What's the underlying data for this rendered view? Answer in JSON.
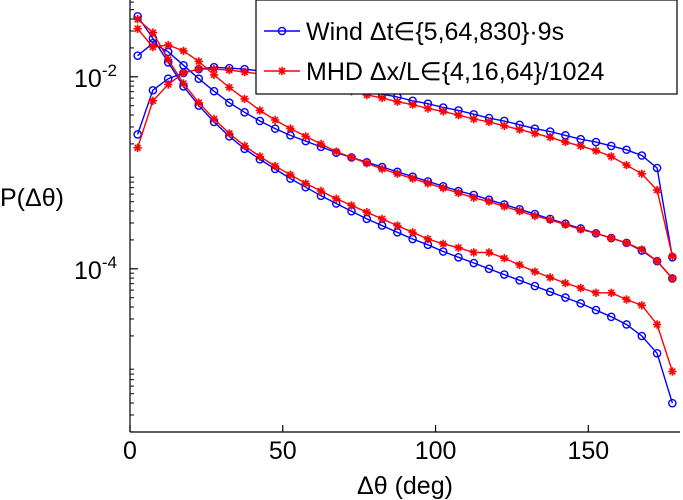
{
  "chart_data": {
    "type": "line",
    "title": "",
    "xlabel": "Δθ (deg)",
    "ylabel": "P(Δθ)",
    "xlim": [
      0,
      180
    ],
    "ylim_log10": [
      -5.7,
      -1.2
    ],
    "yscale": "log",
    "x_ticks": [
      0,
      50,
      100,
      150
    ],
    "x_tick_labels": [
      "0",
      "50",
      "100",
      "150"
    ],
    "y_ticks": [
      -2,
      -4
    ],
    "y_tick_labels": [
      {
        "base": "10",
        "exp": "-2"
      },
      {
        "base": "10",
        "exp": "-4"
      }
    ],
    "legend_position": "top-right",
    "legend": [
      {
        "label": "Wind Δt∈{5,64,830}·9s",
        "color": "#0000ff",
        "marker": "circle"
      },
      {
        "label": "MHD Δx/L∈{4,16,64}/1024",
        "color": "#ff0000",
        "marker": "star"
      }
    ],
    "series": [
      {
        "name": "Wind Δt=5·9s",
        "color": "#0000ff",
        "marker": "circle",
        "x": [
          2.5,
          7.5,
          12.5,
          17.5,
          22.5,
          27.5,
          32.5,
          37.5,
          42.5,
          47.5,
          52.5,
          57.5,
          62.5,
          67.5,
          72.5,
          77.5,
          82.5,
          87.5,
          92.5,
          97.5,
          102.5,
          107.5,
          112.5,
          117.5,
          122.5,
          127.5,
          132.5,
          137.5,
          142.5,
          147.5,
          152.5,
          157.5,
          162.5,
          167.5,
          172.5,
          177.5
        ],
        "log10y": [
          -1.37,
          -1.6,
          -1.85,
          -2.1,
          -2.3,
          -2.47,
          -2.62,
          -2.75,
          -2.86,
          -2.96,
          -3.06,
          -3.15,
          -3.24,
          -3.32,
          -3.4,
          -3.48,
          -3.55,
          -3.62,
          -3.69,
          -3.75,
          -3.82,
          -3.88,
          -3.94,
          -4.0,
          -4.06,
          -4.12,
          -4.18,
          -4.24,
          -4.3,
          -4.36,
          -4.43,
          -4.5,
          -4.58,
          -4.7,
          -4.88,
          -5.4
        ]
      },
      {
        "name": "Wind Δt=64·9s",
        "color": "#0000ff",
        "marker": "circle",
        "x": [
          2.5,
          7.5,
          12.5,
          17.5,
          22.5,
          27.5,
          32.5,
          37.5,
          42.5,
          47.5,
          52.5,
          57.5,
          62.5,
          67.5,
          72.5,
          77.5,
          82.5,
          87.5,
          92.5,
          97.5,
          102.5,
          107.5,
          112.5,
          117.5,
          122.5,
          127.5,
          132.5,
          137.5,
          142.5,
          147.5,
          152.5,
          157.5,
          162.5,
          167.5,
          172.5,
          177.5
        ],
        "log10y": [
          -1.78,
          -1.65,
          -1.74,
          -1.88,
          -2.02,
          -2.15,
          -2.27,
          -2.37,
          -2.46,
          -2.54,
          -2.61,
          -2.67,
          -2.73,
          -2.79,
          -2.84,
          -2.89,
          -2.94,
          -2.99,
          -3.04,
          -3.09,
          -3.14,
          -3.19,
          -3.23,
          -3.28,
          -3.33,
          -3.38,
          -3.43,
          -3.48,
          -3.53,
          -3.58,
          -3.63,
          -3.68,
          -3.73,
          -3.81,
          -3.92,
          -4.1
        ]
      },
      {
        "name": "Wind Δt=830·9s",
        "color": "#0000ff",
        "marker": "circle",
        "x": [
          2.5,
          7.5,
          12.5,
          17.5,
          22.5,
          27.5,
          32.5,
          37.5,
          42.5,
          47.5,
          52.5,
          57.5,
          62.5,
          67.5,
          72.5,
          77.5,
          82.5,
          87.5,
          92.5,
          97.5,
          102.5,
          107.5,
          112.5,
          117.5,
          122.5,
          127.5,
          132.5,
          137.5,
          142.5,
          147.5,
          152.5,
          157.5,
          162.5,
          167.5,
          172.5,
          177.5
        ],
        "log10y": [
          -2.6,
          -2.14,
          -2.02,
          -1.96,
          -1.92,
          -1.9,
          -1.91,
          -1.92,
          -1.94,
          -1.96,
          -1.99,
          -2.02,
          -2.05,
          -2.08,
          -2.11,
          -2.14,
          -2.18,
          -2.21,
          -2.25,
          -2.28,
          -2.32,
          -2.35,
          -2.39,
          -2.43,
          -2.46,
          -2.5,
          -2.54,
          -2.57,
          -2.61,
          -2.65,
          -2.68,
          -2.72,
          -2.76,
          -2.82,
          -2.95,
          -3.88
        ]
      },
      {
        "name": "MHD Δx/L=4/1024",
        "color": "#ff0000",
        "marker": "star",
        "x": [
          2.5,
          7.5,
          12.5,
          17.5,
          22.5,
          27.5,
          32.5,
          37.5,
          42.5,
          47.5,
          52.5,
          57.5,
          62.5,
          67.5,
          72.5,
          77.5,
          82.5,
          87.5,
          92.5,
          97.5,
          102.5,
          107.5,
          112.5,
          117.5,
          122.5,
          127.5,
          132.5,
          137.5,
          142.5,
          147.5,
          152.5,
          157.5,
          162.5,
          167.5,
          172.5,
          177.5
        ],
        "log10y": [
          -1.4,
          -1.54,
          -1.82,
          -2.07,
          -2.27,
          -2.44,
          -2.59,
          -2.72,
          -2.83,
          -2.93,
          -3.02,
          -3.11,
          -3.19,
          -3.27,
          -3.34,
          -3.41,
          -3.48,
          -3.55,
          -3.62,
          -3.69,
          -3.74,
          -3.78,
          -3.83,
          -3.83,
          -3.89,
          -3.96,
          -4.03,
          -4.09,
          -4.15,
          -4.2,
          -4.25,
          -4.25,
          -4.32,
          -4.38,
          -4.58,
          -5.07
        ]
      },
      {
        "name": "MHD Δx/L=16/1024",
        "color": "#ff0000",
        "marker": "star",
        "x": [
          2.5,
          7.5,
          12.5,
          17.5,
          22.5,
          27.5,
          32.5,
          37.5,
          42.5,
          47.5,
          52.5,
          57.5,
          62.5,
          67.5,
          72.5,
          77.5,
          82.5,
          87.5,
          92.5,
          97.5,
          102.5,
          107.5,
          112.5,
          117.5,
          122.5,
          127.5,
          132.5,
          137.5,
          142.5,
          147.5,
          152.5,
          157.5,
          162.5,
          167.5,
          172.5,
          177.5
        ],
        "log10y": [
          -1.5,
          -1.69,
          -1.67,
          -1.73,
          -1.84,
          -1.98,
          -2.11,
          -2.23,
          -2.35,
          -2.45,
          -2.54,
          -2.62,
          -2.7,
          -2.78,
          -2.84,
          -2.9,
          -2.96,
          -3.01,
          -3.06,
          -3.11,
          -3.16,
          -3.21,
          -3.26,
          -3.3,
          -3.35,
          -3.4,
          -3.45,
          -3.49,
          -3.54,
          -3.59,
          -3.63,
          -3.68,
          -3.73,
          -3.8,
          -3.92,
          -4.1
        ]
      },
      {
        "name": "MHD Δx/L=64/1024",
        "color": "#ff0000",
        "marker": "star",
        "x": [
          2.5,
          7.5,
          12.5,
          17.5,
          22.5,
          27.5,
          32.5,
          37.5,
          42.5,
          47.5,
          52.5,
          57.5,
          62.5,
          67.5,
          72.5,
          77.5,
          82.5,
          87.5,
          92.5,
          97.5,
          102.5,
          107.5,
          112.5,
          117.5,
          122.5,
          127.5,
          132.5,
          137.5,
          142.5,
          147.5,
          152.5,
          157.5,
          162.5,
          167.5,
          172.5,
          177.5
        ],
        "log10y": [
          -2.74,
          -2.25,
          -2.08,
          -1.96,
          -1.92,
          -1.92,
          -1.93,
          -1.95,
          -1.97,
          -2.0,
          -2.03,
          -2.06,
          -2.09,
          -2.12,
          -2.15,
          -2.19,
          -2.22,
          -2.26,
          -2.29,
          -2.33,
          -2.36,
          -2.4,
          -2.44,
          -2.47,
          -2.51,
          -2.55,
          -2.59,
          -2.63,
          -2.68,
          -2.72,
          -2.77,
          -2.83,
          -2.92,
          -3.01,
          -3.18,
          -3.87
        ]
      }
    ]
  }
}
